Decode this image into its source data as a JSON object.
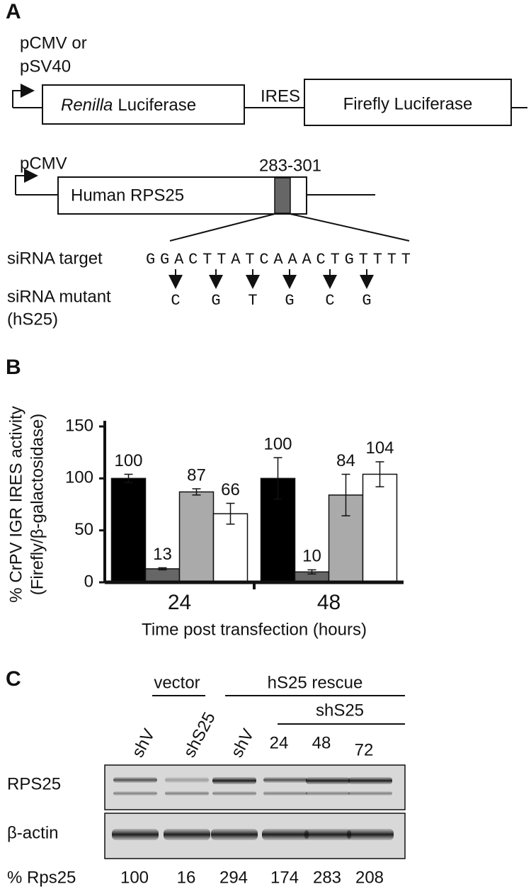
{
  "panel_a": {
    "label": "A",
    "construct1": {
      "promoter": [
        "pCMV or",
        "pSV40"
      ],
      "renilla_italic": "Renilla",
      "renilla_rest": "Luciferase",
      "ires": "IRES",
      "firefly": "Firefly Luciferase"
    },
    "construct2": {
      "promoter": "pCMV",
      "region": "283-301",
      "gene": "Human RPS25"
    },
    "sirna": {
      "target_label": "siRNA target",
      "target_seq": "GGACTTATCAAACTGTTTT",
      "mutant_label": [
        "siRNA mutant",
        "(hS25)"
      ],
      "mutations": [
        "C",
        "G",
        "T",
        "G",
        "C",
        "G"
      ]
    }
  },
  "chart_data": {
    "type": "bar",
    "panel_label": "B",
    "ylabel": [
      "% CrPV IGR IRES activity",
      "(Firefly/β-galactosidase)"
    ],
    "xlabel": "Time post transfection (hours)",
    "categories": [
      "24",
      "48"
    ],
    "series": [
      {
        "color": "#000000",
        "values": [
          100,
          100
        ],
        "errors": [
          4,
          20
        ]
      },
      {
        "color": "#666666",
        "values": [
          13,
          10
        ],
        "errors": [
          1,
          2
        ]
      },
      {
        "color": "#aaaaaa",
        "values": [
          87,
          84
        ],
        "errors": [
          3,
          20
        ]
      },
      {
        "color": "#ffffff",
        "values": [
          66,
          104
        ],
        "errors": [
          10,
          12
        ]
      }
    ],
    "ylim": [
      0,
      150
    ],
    "yticks": [
      0,
      50,
      100,
      150
    ]
  },
  "panel_c": {
    "label": "C",
    "groups": {
      "vector": "vector",
      "rescue": "hS25 rescue",
      "shs25": "shS25"
    },
    "lanes": [
      "shV",
      "shS25",
      "shV",
      "24",
      "48",
      "72"
    ],
    "rows": [
      "RPS25",
      "β-actin"
    ],
    "quant_label": "% Rps25",
    "quant": [
      100,
      16,
      294,
      174,
      283,
      208
    ]
  }
}
